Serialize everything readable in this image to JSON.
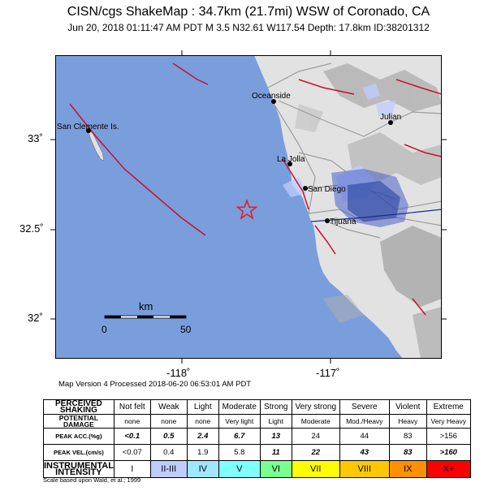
{
  "header": {
    "title": "CISN/cgs ShakeMap : 34.7km (21.7mi) WSW of Coronado, CA",
    "subtitle": "Jun 20, 2018 01:11:47 AM PDT   M 3.5   N32.61 W117.54   Depth: 17.8km   ID:38201312"
  },
  "map": {
    "ocean_color": "#7A9EDC",
    "land_color": "#E2E2E2",
    "fault_color": "#C8102E",
    "epicenter_color": "#E0202A",
    "cities": [
      {
        "name": "Oceanside"
      },
      {
        "name": "San Clemente Is."
      },
      {
        "name": "Julian"
      },
      {
        "name": "La Jolla"
      },
      {
        "name": "San Diego"
      },
      {
        "name": "Tijuana"
      }
    ],
    "axes": {
      "lat_ticks": [
        "33˚",
        "32.5˚",
        "32˚"
      ],
      "lon_ticks": [
        "-118˚",
        "-117˚"
      ]
    },
    "scale_bar": {
      "unit": "km",
      "start": "0",
      "end": "50"
    },
    "epicenter_icon": "star-icon"
  },
  "map_version": "Map Version 4 Processed 2018-06-20 06:53:01 AM PDT",
  "legend": {
    "rows": [
      {
        "label": "PERCEIVED SHAKING",
        "values": [
          "Not felt",
          "Weak",
          "Light",
          "Moderate",
          "Strong",
          "Very strong",
          "Severe",
          "Violent",
          "Extreme"
        ]
      },
      {
        "label": "POTENTIAL DAMAGE",
        "values": [
          "none",
          "none",
          "none",
          "Very light",
          "Light",
          "Moderate",
          "Mod./Heavy",
          "Heavy",
          "Very Heavy"
        ]
      },
      {
        "label": "PEAK ACC.(%g)",
        "values": [
          "<0.1",
          "0.5",
          "2.4",
          "6.7",
          "13",
          "24",
          "44",
          "83",
          ">156"
        ]
      },
      {
        "label": "PEAK VEL.(cm/s)",
        "values": [
          "<0.07",
          "0.4",
          "1.9",
          "5.8",
          "11",
          "22",
          "43",
          "83",
          ">160"
        ]
      },
      {
        "label": "INSTRUMENTAL INTENSITY",
        "values": [
          "I",
          "II-III",
          "IV",
          "V",
          "VI",
          "VII",
          "VIII",
          "IX",
          "X+"
        ]
      }
    ],
    "intensity_colors": [
      "#FFFFFF",
      "#BFCCFF",
      "#A0E6FF",
      "#80FFFF",
      "#7AFF93",
      "#FFFF00",
      "#FFC800",
      "#FF9100",
      "#FF0000"
    ]
  },
  "footnote": "Scale based upon Wald, et al.; 1999"
}
